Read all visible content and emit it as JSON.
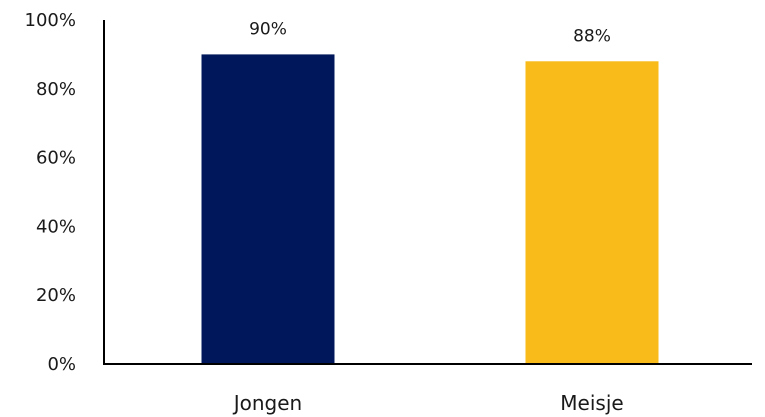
{
  "chart_data": {
    "type": "bar",
    "categories": [
      "Jongen",
      "Meisje"
    ],
    "values": [
      90,
      88
    ],
    "data_labels": [
      "90%",
      "88%"
    ],
    "colors": [
      "#00185b",
      "#f8bb1a"
    ],
    "title": "",
    "xlabel": "",
    "ylabel": "",
    "ylim": [
      0,
      100
    ],
    "y_ticks": [
      0,
      20,
      40,
      60,
      80,
      100
    ],
    "y_tick_labels": [
      "0%",
      "20%",
      "40%",
      "60%",
      "80%",
      "100%"
    ],
    "grid": false,
    "legend": "none"
  }
}
